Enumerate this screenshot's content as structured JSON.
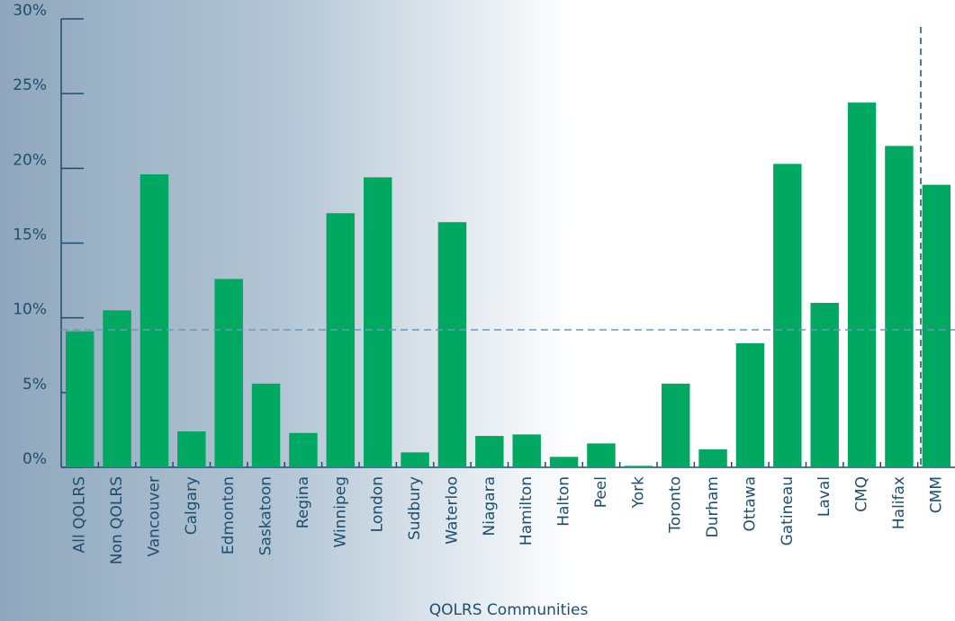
{
  "chart_data": {
    "type": "bar",
    "x_label": "QOLRS Communities",
    "categories": [
      "All QOLRS",
      "Non QOLRS",
      "Vancouver",
      "Calgary",
      "Edmonton",
      "Saskatoon",
      "Regina",
      "Winnipeg",
      "London",
      "Sudbury",
      "Waterloo",
      "Niagara",
      "Hamilton",
      "Halton",
      "Peel",
      "York",
      "Toronto",
      "Durham",
      "Ottawa",
      "Gatineau",
      "Laval",
      "CMQ",
      "Halifax",
      "CMM"
    ],
    "values": [
      9.1,
      10.5,
      19.6,
      2.4,
      12.6,
      5.6,
      2.3,
      17.0,
      19.4,
      1.0,
      16.4,
      2.1,
      2.2,
      0.7,
      1.6,
      0.1,
      5.6,
      1.2,
      8.3,
      20.3,
      11.0,
      24.4,
      21.5,
      18.9
    ],
    "color": "#00a862",
    "reference_line": 9.2,
    "ylim": [
      0,
      30
    ],
    "yticks": [
      {
        "value": 0,
        "label": "0%"
      },
      {
        "value": 5,
        "label": "5%"
      },
      {
        "value": 10,
        "label": "10%"
      },
      {
        "value": 15,
        "label": "15%"
      },
      {
        "value": 20,
        "label": "20%"
      },
      {
        "value": 25,
        "label": "25%"
      },
      {
        "value": 30,
        "label": "30%"
      }
    ]
  }
}
